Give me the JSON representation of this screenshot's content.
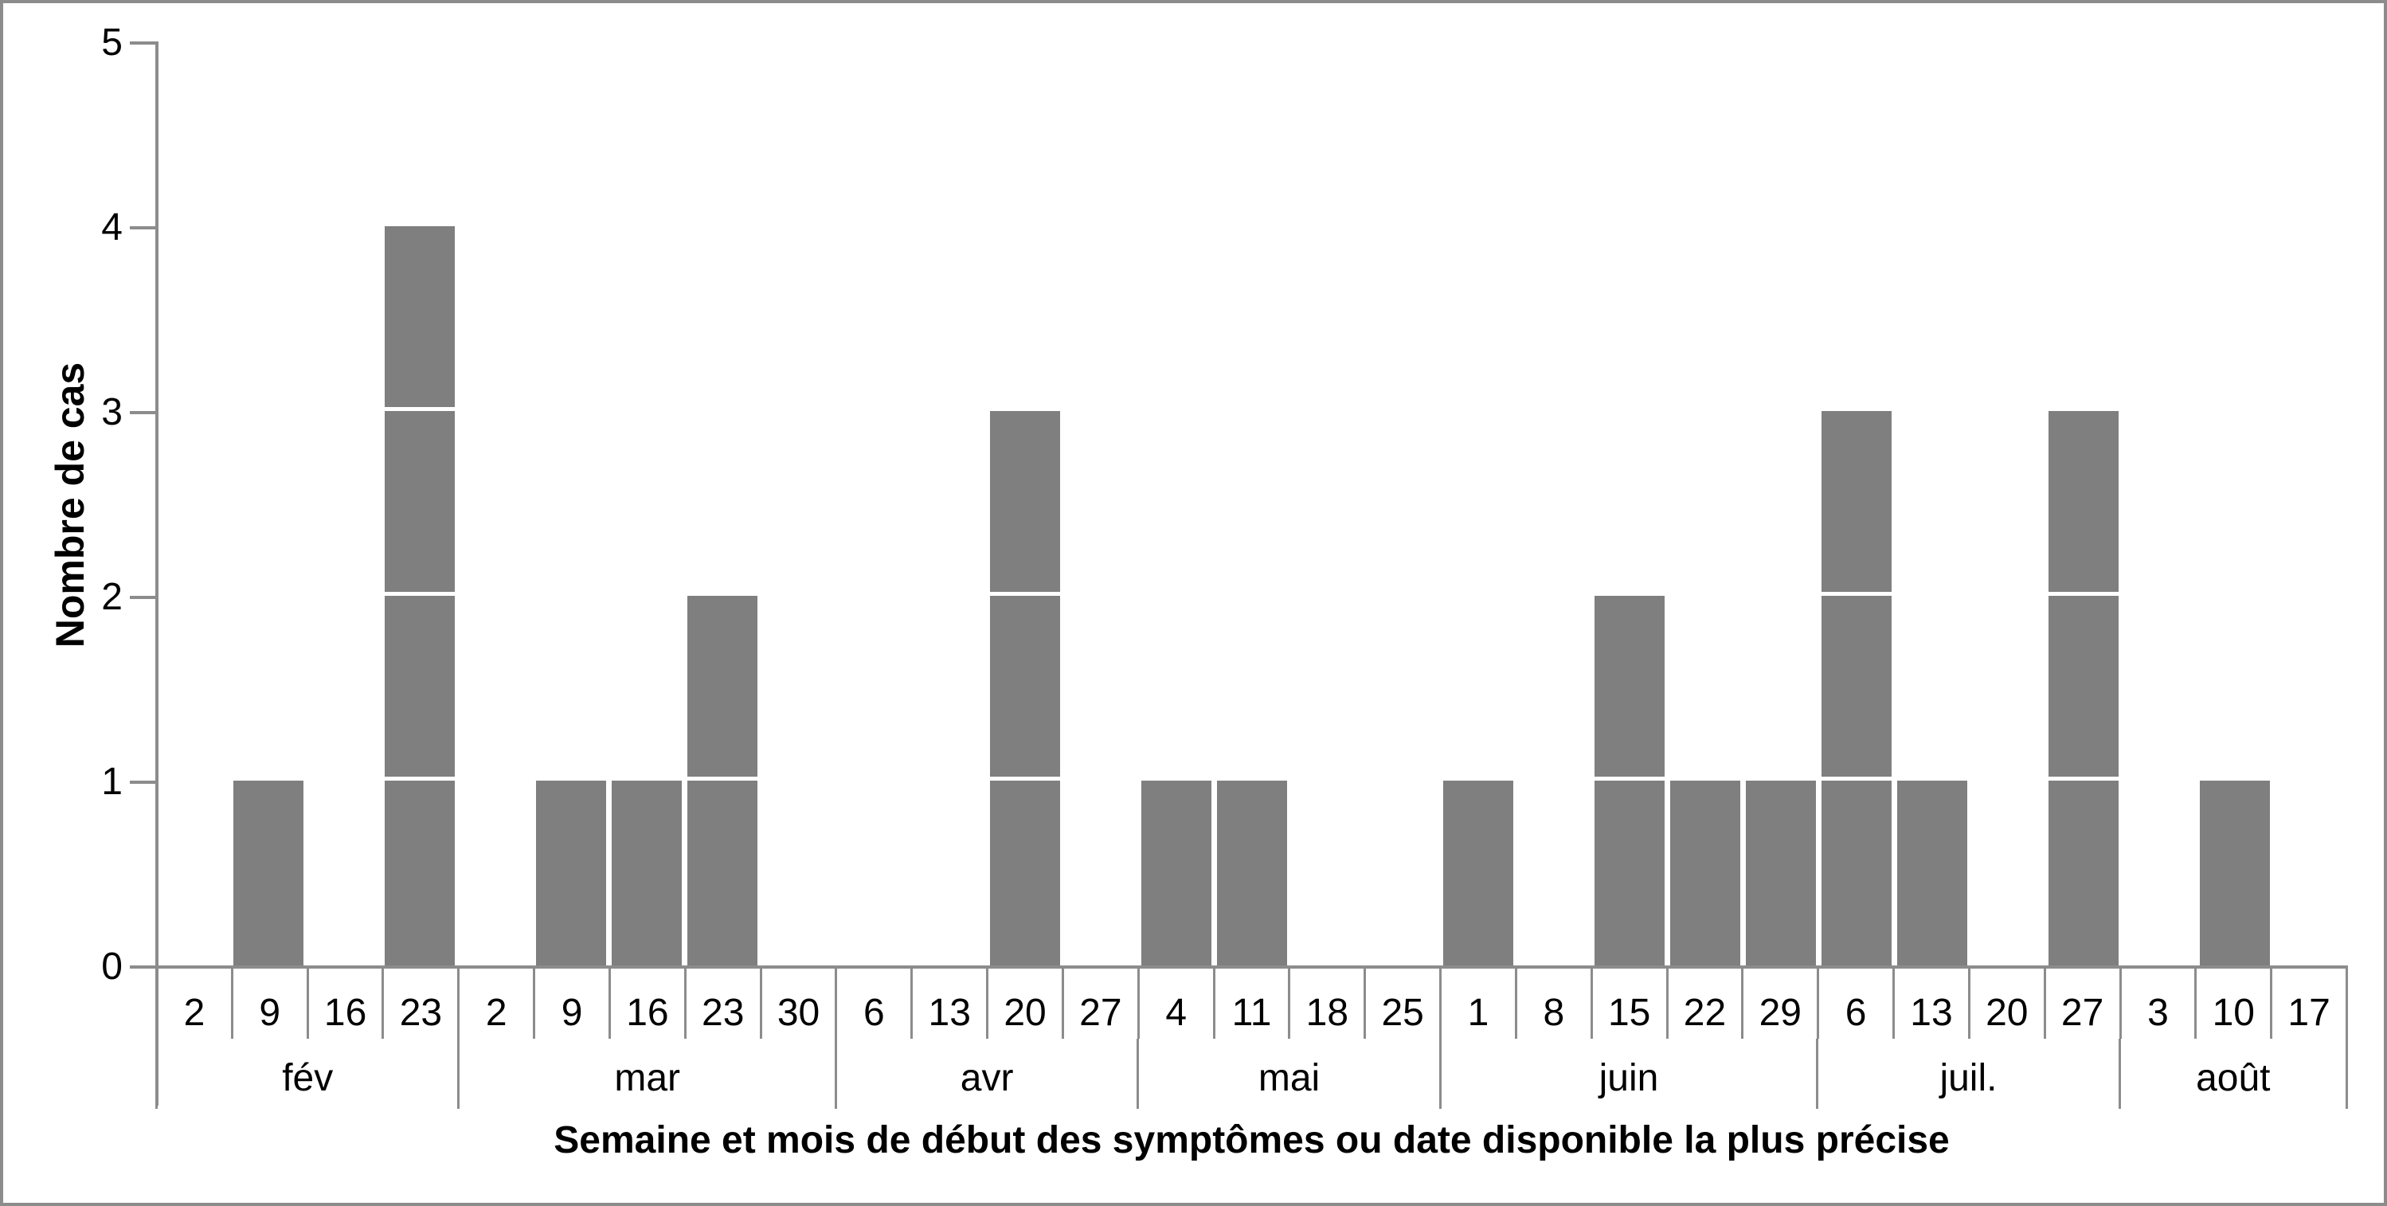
{
  "figure": {
    "y_axis_title": "Nombre de cas",
    "x_axis_title": "Semaine et mois de début des symptômes ou date disponible la plus précise"
  },
  "chart_data": {
    "type": "bar",
    "title": "",
    "ylabel": "Nombre de cas",
    "xlabel": "Semaine et mois de début des symptômes ou date disponible la plus précise",
    "ylim": [
      0,
      5
    ],
    "ytick_labels": [
      "0",
      "1",
      "2",
      "3",
      "4",
      "5"
    ],
    "grid": "off",
    "legend": "none",
    "bar_color": "#7f7f7f",
    "axis_color": "#8c8c8c",
    "bar_segment_divider_color": "#ffffff",
    "months": [
      {
        "label": "fév",
        "weeks": [
          "2",
          "9",
          "16",
          "23"
        ],
        "values": [
          0,
          1,
          0,
          4
        ]
      },
      {
        "label": "mar",
        "weeks": [
          "2",
          "9",
          "16",
          "23",
          "30"
        ],
        "values": [
          0,
          1,
          1,
          2,
          0
        ]
      },
      {
        "label": "avr",
        "weeks": [
          "6",
          "13",
          "20",
          "27"
        ],
        "values": [
          0,
          0,
          3,
          0
        ]
      },
      {
        "label": "mai",
        "weeks": [
          "4",
          "11",
          "18",
          "25"
        ],
        "values": [
          1,
          1,
          0,
          0
        ]
      },
      {
        "label": "juin",
        "weeks": [
          "1",
          "8",
          "15",
          "22",
          "29"
        ],
        "values": [
          1,
          0,
          2,
          1,
          1
        ]
      },
      {
        "label": "juil.",
        "weeks": [
          "6",
          "13",
          "20",
          "27"
        ],
        "values": [
          3,
          1,
          0,
          3
        ]
      },
      {
        "label": "août",
        "weeks": [
          "3",
          "10",
          "17"
        ],
        "values": [
          0,
          1,
          0
        ]
      }
    ]
  }
}
